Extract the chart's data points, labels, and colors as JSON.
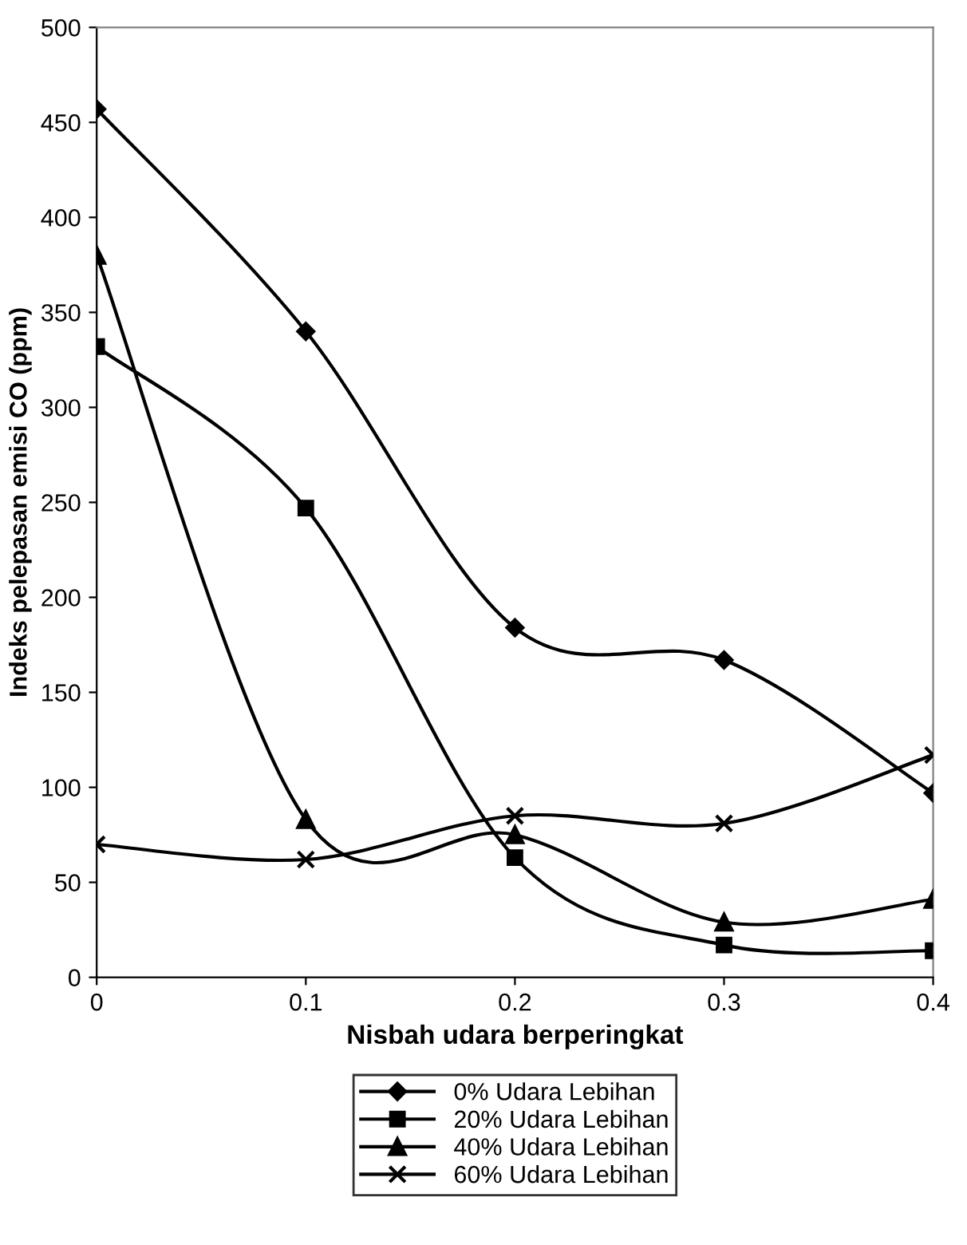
{
  "chart_data": {
    "type": "line",
    "xlabel": "Nisbah udara berperingkat",
    "ylabel": "Indeks pelepasan emisi CO (ppm)",
    "x": [
      0,
      0.1,
      0.2,
      0.3,
      0.4
    ],
    "series": [
      {
        "name": "0% Udara Lebihan",
        "color": "#000000",
        "marker": "diamond",
        "values": [
          457,
          340,
          184,
          167,
          97
        ]
      },
      {
        "name": "20% Udara Lebihan",
        "color": "#000000",
        "marker": "square",
        "values": [
          332,
          247,
          63,
          17,
          14
        ]
      },
      {
        "name": "40% Udara Lebihan",
        "color": "#000000",
        "marker": "triangle",
        "values": [
          380,
          83,
          75,
          29,
          41
        ]
      },
      {
        "name": "60% Udara Lebihan",
        "color": "#000000",
        "marker": "cross",
        "values": [
          70,
          62,
          85,
          81,
          117
        ]
      }
    ],
    "xlim": [
      0,
      0.4
    ],
    "xticks": [
      0,
      0.1,
      0.2,
      0.3,
      0.4
    ],
    "ylim": [
      0,
      500
    ],
    "yticks": [
      0,
      50,
      100,
      150,
      200,
      250,
      300,
      350,
      400,
      450,
      500
    ],
    "grid": false,
    "legend": "bottom",
    "line_style": "solid"
  }
}
